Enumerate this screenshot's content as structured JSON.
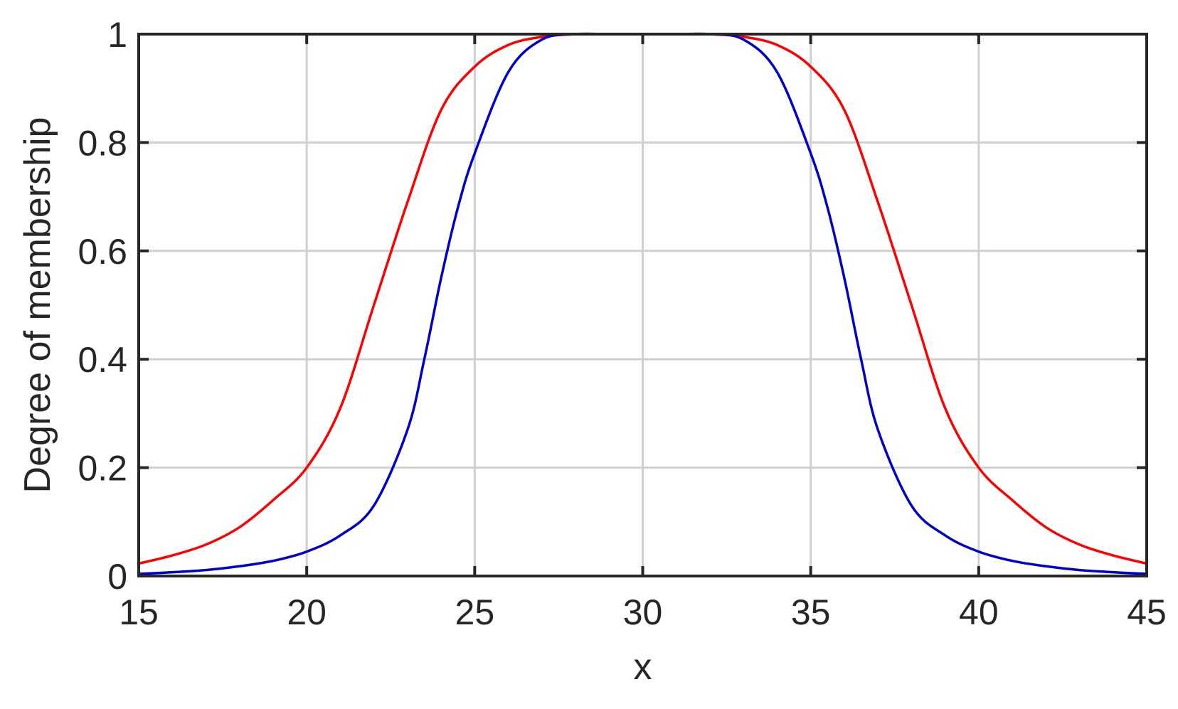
{
  "chart_data": {
    "type": "line",
    "xlabel": "x",
    "ylabel": "Degree of membership",
    "xlim": [
      15,
      45
    ],
    "ylim": [
      0,
      1
    ],
    "xticks": [
      "15",
      "20",
      "25",
      "30",
      "35",
      "40",
      "45"
    ],
    "yticks": [
      "0",
      "0.2",
      "0.4",
      "0.6",
      "0.8",
      "1"
    ],
    "grid": true,
    "series": [
      {
        "color": "#ff0000",
        "x": [
          15,
          16,
          17,
          18,
          19,
          20,
          21,
          22,
          23,
          24,
          25,
          26,
          27,
          28,
          29,
          30,
          31,
          32,
          33,
          34,
          35,
          36,
          37,
          38,
          39,
          40,
          41,
          42,
          43,
          44,
          45
        ],
        "y": [
          0.023,
          0.038,
          0.058,
          0.09,
          0.14,
          0.2,
          0.31,
          0.5,
          0.69,
          0.86,
          0.94,
          0.98,
          0.995,
          1.0,
          1.0,
          1.0,
          1.0,
          1.0,
          0.995,
          0.98,
          0.94,
          0.86,
          0.69,
          0.5,
          0.31,
          0.2,
          0.14,
          0.09,
          0.058,
          0.038,
          0.023
        ]
      },
      {
        "color": "#0000cc",
        "x": [
          15,
          16,
          17,
          18,
          19,
          20,
          21,
          22,
          23,
          23.5,
          24,
          24.5,
          25,
          26,
          27,
          28,
          29,
          30,
          31,
          32,
          33,
          34,
          35,
          35.5,
          36,
          36.5,
          37,
          38,
          39,
          40,
          41,
          42,
          43,
          44,
          45
        ],
        "y": [
          0.004,
          0.007,
          0.011,
          0.018,
          0.028,
          0.045,
          0.075,
          0.13,
          0.27,
          0.4,
          0.55,
          0.68,
          0.78,
          0.93,
          0.99,
          1.0,
          1.0,
          1.0,
          1.0,
          1.0,
          0.99,
          0.93,
          0.78,
          0.68,
          0.55,
          0.4,
          0.27,
          0.13,
          0.075,
          0.045,
          0.028,
          0.018,
          0.011,
          0.007,
          0.004
        ]
      }
    ]
  }
}
